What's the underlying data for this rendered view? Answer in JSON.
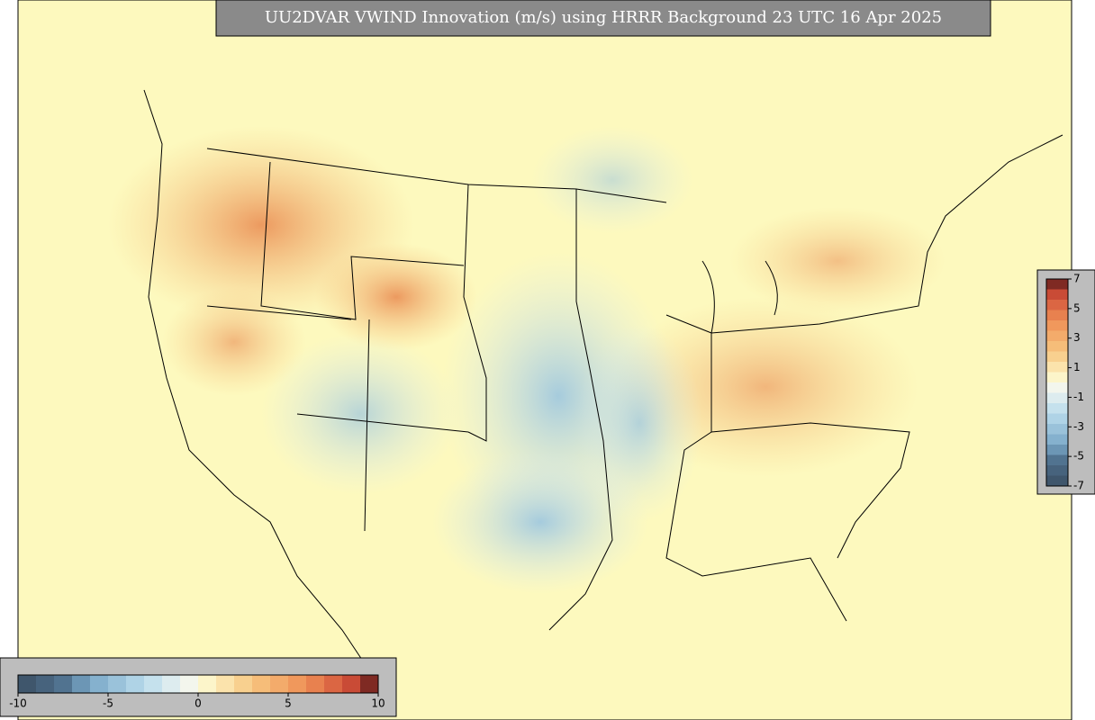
{
  "title": "UU2DVAR VWIND Innovation (m/s) using HRRR Background 23 UTC 16 Apr 2025",
  "colorbar_horizontal": {
    "ticks": [
      -10,
      -5,
      0,
      5,
      10
    ]
  },
  "colorbar_vertical": {
    "ticks": [
      7,
      5,
      3,
      1,
      -1,
      -3,
      -5,
      -7
    ]
  }
}
